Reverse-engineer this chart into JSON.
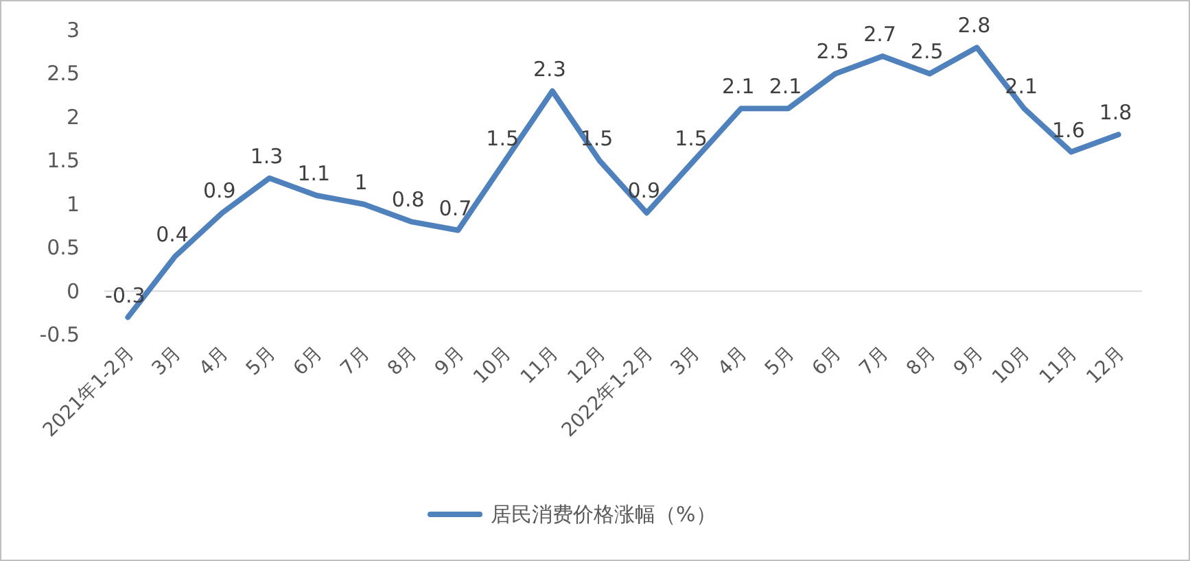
{
  "chart_data": {
    "type": "line",
    "categories": [
      "2021年1-2月",
      "3月",
      "4月",
      "5月",
      "6月",
      "7月",
      "8月",
      "9月",
      "10月",
      "11月",
      "12月",
      "2022年1-2月",
      "3月",
      "4月",
      "5月",
      "6月",
      "7月",
      "8月",
      "9月",
      "10月",
      "11月",
      "12月"
    ],
    "series": [
      {
        "name": "居民消费价格涨幅（%）",
        "color": "#4f81bd",
        "values": [
          -0.3,
          0.4,
          0.9,
          1.3,
          1.1,
          1,
          0.8,
          0.7,
          1.5,
          2.3,
          1.5,
          0.9,
          1.5,
          2.1,
          2.1,
          2.5,
          2.7,
          2.5,
          2.8,
          2.1,
          1.6,
          1.8
        ]
      }
    ],
    "ylim": [
      -0.5,
      3
    ],
    "yticks": [
      -0.5,
      0,
      0.5,
      1,
      1.5,
      2,
      2.5,
      3
    ],
    "data_labels": true,
    "legend": "bottom"
  }
}
